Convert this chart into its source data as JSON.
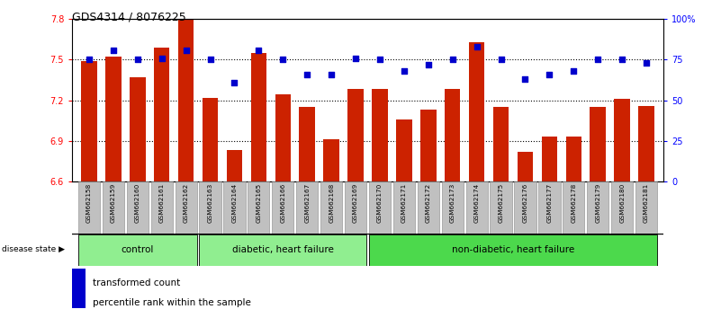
{
  "title": "GDS4314 / 8076225",
  "samples": [
    "GSM662158",
    "GSM662159",
    "GSM662160",
    "GSM662161",
    "GSM662162",
    "GSM662163",
    "GSM662164",
    "GSM662165",
    "GSM662166",
    "GSM662167",
    "GSM662168",
    "GSM662169",
    "GSM662170",
    "GSM662171",
    "GSM662172",
    "GSM662173",
    "GSM662174",
    "GSM662175",
    "GSM662176",
    "GSM662177",
    "GSM662178",
    "GSM662179",
    "GSM662180",
    "GSM662181"
  ],
  "bar_values": [
    7.49,
    7.52,
    7.37,
    7.59,
    7.8,
    7.22,
    6.83,
    7.55,
    7.24,
    7.15,
    6.91,
    7.28,
    7.28,
    7.06,
    7.13,
    7.28,
    7.63,
    7.15,
    6.82,
    6.93,
    6.93,
    7.15,
    7.21,
    7.16
  ],
  "percentile_values": [
    75,
    81,
    75,
    76,
    81,
    75,
    61,
    81,
    75,
    66,
    66,
    76,
    75,
    68,
    72,
    75,
    83,
    75,
    63,
    66,
    68,
    75,
    75,
    73
  ],
  "ylim_left": [
    6.6,
    7.8
  ],
  "ylim_right": [
    0,
    100
  ],
  "yticks_left": [
    6.6,
    6.9,
    7.2,
    7.5,
    7.8
  ],
  "yticks_right": [
    0,
    25,
    50,
    75,
    100
  ],
  "ytick_labels_right": [
    "0",
    "25",
    "50",
    "75",
    "100%"
  ],
  "bar_color": "#CC2200",
  "dot_color": "#0000CC",
  "bar_width": 0.65,
  "group_labels": [
    "control",
    "diabetic, heart failure",
    "non-diabetic, heart failure"
  ],
  "group_starts": [
    0,
    5,
    12
  ],
  "group_ends": [
    5,
    12,
    24
  ],
  "group_colors": [
    "#90EE90",
    "#90EE90",
    "#4CD94C"
  ],
  "xtick_bg_color": "#C0C0C0",
  "grid_color": "black",
  "bg_color": "white"
}
